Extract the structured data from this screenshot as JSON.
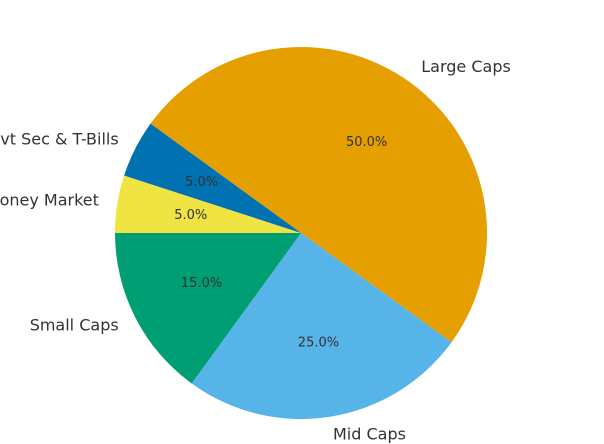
{
  "chart_data": {
    "type": "pie",
    "title": "",
    "slices": [
      {
        "label": "Large Caps",
        "value": 50.0,
        "pct_label": "50.0%",
        "color": "#E69F00"
      },
      {
        "label": "Mid Caps",
        "value": 25.0,
        "pct_label": "25.0%",
        "color": "#56B4E9"
      },
      {
        "label": "Small Caps",
        "value": 15.0,
        "pct_label": "15.0%",
        "color": "#009E73"
      },
      {
        "label": "Debt & Money Market",
        "value": 5.0,
        "pct_label": "5.0%",
        "color": "#F0E442"
      },
      {
        "label": "Govt Sec & T-Bills",
        "value": 5.0,
        "pct_label": "5.0%",
        "color": "#0072B2"
      }
    ],
    "start_angle_deg": 144,
    "direction": "clockwise",
    "legend": "none"
  }
}
